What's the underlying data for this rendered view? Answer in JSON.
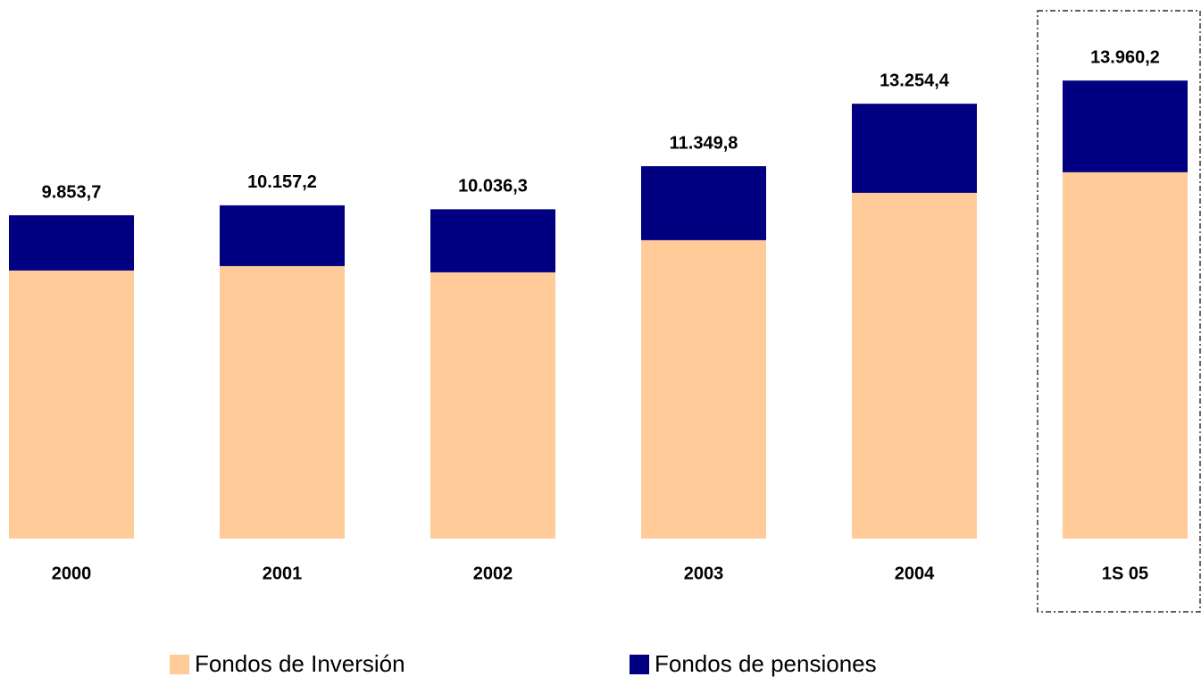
{
  "chart_data": {
    "type": "stacked_bar",
    "categories": [
      "2000",
      "2001",
      "2002",
      "2003",
      "2004",
      "1S 05"
    ],
    "series": [
      {
        "name": "Fondos de Inversión",
        "color": "#ffcc99",
        "values": [
          8170,
          8305,
          8115,
          9095,
          10538,
          11165
        ]
      },
      {
        "name": "Fondos de pensiones",
        "color": "#000080",
        "values": [
          1684,
          1852,
          1921,
          2255,
          2716,
          2795
        ]
      }
    ],
    "total_labels": [
      "9.853,7",
      "10.157,2",
      "10.036,3",
      "11.349,8",
      "13.254,4",
      "13.960,2"
    ],
    "ylim": [
      0,
      15000
    ]
  }
}
